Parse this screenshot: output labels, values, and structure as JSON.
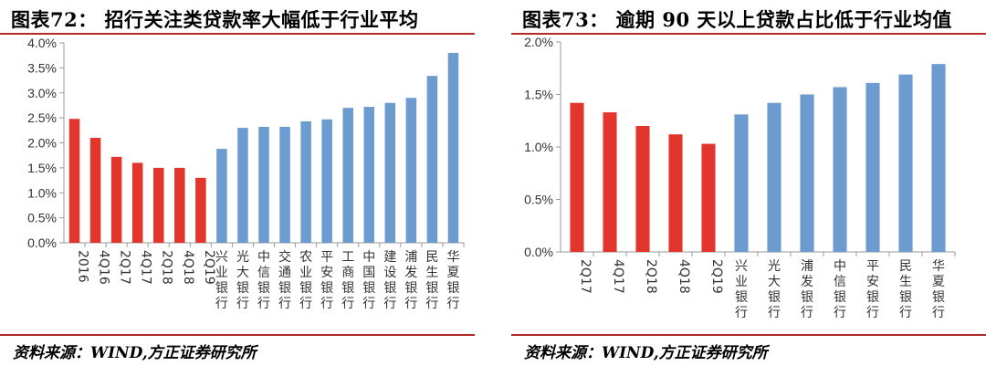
{
  "left": {
    "title": "图表72：  招行关注类贷款率大幅低于行业平均",
    "source": "资料来源：WIND,方正证券研究所"
  },
  "right": {
    "title": "图表73：  逾期 90 天以上贷款占比低于行业均值",
    "source": "资料来源：WIND,方正证券研究所"
  },
  "chart_data": [
    {
      "type": "bar",
      "title": "招行关注类贷款率大幅低于行业平均",
      "categories": [
        "2016",
        "4Q16",
        "2Q17",
        "4Q17",
        "2Q18",
        "4Q18",
        "2Q19",
        "兴业银行",
        "光大银行",
        "中信银行",
        "交通银行",
        "农业银行",
        "平安银行",
        "工商银行",
        "中国银行",
        "建设银行",
        "浦发银行",
        "民生银行",
        "华夏银行"
      ],
      "values": [
        2.48,
        2.1,
        1.72,
        1.6,
        1.5,
        1.5,
        1.3,
        1.88,
        2.3,
        2.32,
        2.32,
        2.43,
        2.47,
        2.7,
        2.72,
        2.8,
        2.9,
        3.34,
        3.8
      ],
      "colors": [
        "#e2362c",
        "#e2362c",
        "#e2362c",
        "#e2362c",
        "#e2362c",
        "#e2362c",
        "#e2362c",
        "#6c9bd0",
        "#6c9bd0",
        "#6c9bd0",
        "#6c9bd0",
        "#6c9bd0",
        "#6c9bd0",
        "#6c9bd0",
        "#6c9bd0",
        "#6c9bd0",
        "#6c9bd0",
        "#6c9bd0",
        "#6c9bd0"
      ],
      "ylim": [
        0,
        4.0
      ],
      "yticks": [
        "0.0%",
        "0.5%",
        "1.0%",
        "1.5%",
        "2.0%",
        "2.5%",
        "3.0%",
        "3.5%",
        "4.0%"
      ],
      "grid": false,
      "legend": "none"
    },
    {
      "type": "bar",
      "title": "逾期 90 天以上贷款占比低于行业均值",
      "categories": [
        "2Q17",
        "4Q17",
        "2Q18",
        "4Q18",
        "2Q19",
        "兴业银行",
        "光大银行",
        "浦发银行",
        "中信银行",
        "平安银行",
        "民生银行",
        "华夏银行"
      ],
      "values": [
        1.42,
        1.33,
        1.2,
        1.12,
        1.03,
        1.31,
        1.42,
        1.5,
        1.57,
        1.61,
        1.69,
        1.79
      ],
      "colors": [
        "#e2362c",
        "#e2362c",
        "#e2362c",
        "#e2362c",
        "#e2362c",
        "#6c9bd0",
        "#6c9bd0",
        "#6c9bd0",
        "#6c9bd0",
        "#6c9bd0",
        "#6c9bd0",
        "#6c9bd0"
      ],
      "ylim": [
        0,
        2.0
      ],
      "yticks": [
        "0.0%",
        "0.5%",
        "1.0%",
        "1.5%",
        "2.0%"
      ],
      "grid": false,
      "legend": "none"
    }
  ]
}
